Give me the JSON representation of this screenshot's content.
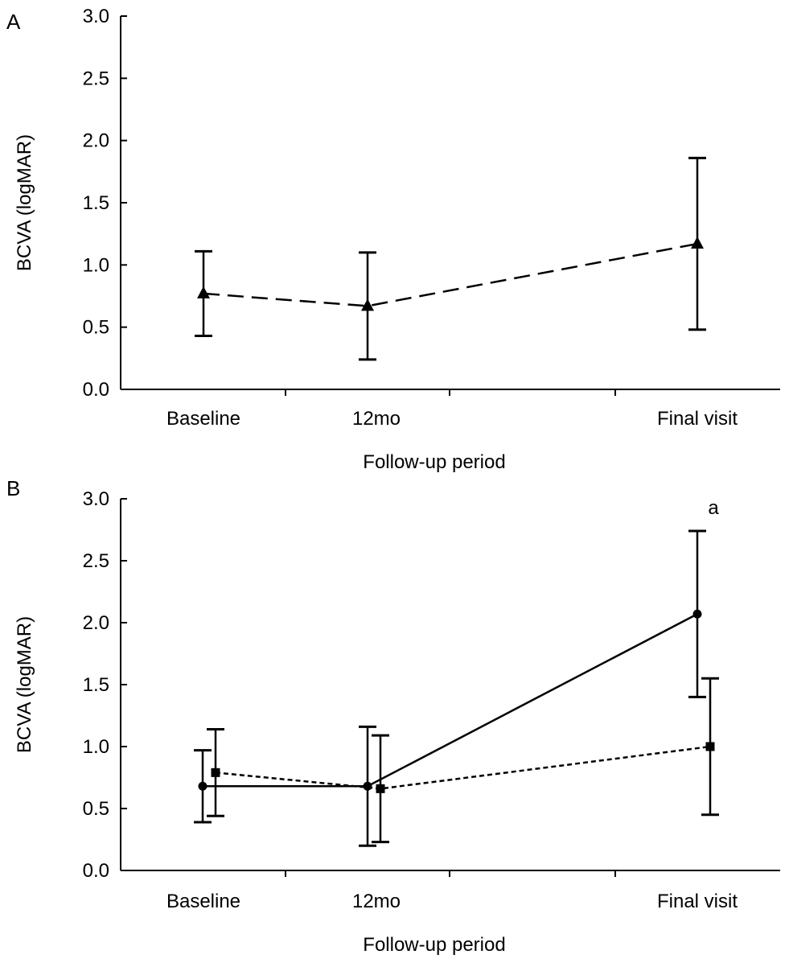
{
  "chart_data": [
    {
      "type": "line",
      "panel_label": "A",
      "categories": [
        "Baseline",
        "12mo",
        "Final visit"
      ],
      "xlabel": "Follow-up period",
      "ylabel": "BCVA (logMAR)",
      "ylim": [
        0,
        3.0
      ],
      "yticks": [
        "0.0",
        "0.5",
        "1.0",
        "1.5",
        "2.0",
        "2.5",
        "3.0"
      ],
      "grid": false,
      "series": [
        {
          "marker": "triangle",
          "line_style": "long-dash",
          "values": [
            0.77,
            0.67,
            1.17
          ],
          "error_low": [
            0.43,
            0.24,
            0.48
          ],
          "error_high": [
            1.11,
            1.1,
            1.86
          ]
        }
      ],
      "annotations": []
    },
    {
      "type": "line",
      "panel_label": "B",
      "categories": [
        "Baseline",
        "12mo",
        "Final visit"
      ],
      "xlabel": "Follow-up period",
      "ylabel": "BCVA (logMAR)",
      "ylim": [
        0,
        3.0
      ],
      "yticks": [
        "0.0",
        "0.5",
        "1.0",
        "1.5",
        "2.0",
        "2.5",
        "3.0"
      ],
      "grid": false,
      "series": [
        {
          "marker": "circle",
          "line_style": "solid",
          "values": [
            0.68,
            0.68,
            2.07
          ],
          "error_low": [
            0.39,
            0.2,
            1.4
          ],
          "error_high": [
            0.97,
            1.16,
            2.74
          ]
        },
        {
          "marker": "square",
          "line_style": "dotted",
          "values": [
            0.79,
            0.66,
            1.0
          ],
          "error_low": [
            0.44,
            0.23,
            0.45
          ],
          "error_high": [
            1.14,
            1.09,
            1.55
          ]
        }
      ],
      "annotations": [
        {
          "text": "a",
          "category": "Final visit",
          "y": 2.93
        }
      ]
    }
  ]
}
